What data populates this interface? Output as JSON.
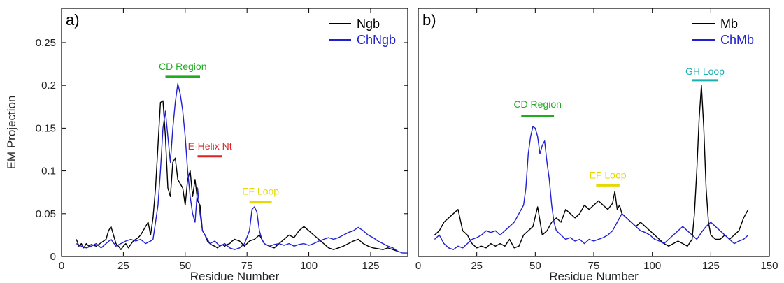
{
  "chart_data": [
    {
      "type": "line",
      "panel_label": "a)",
      "xlabel": "Residue Number",
      "ylabel": "EM Projection",
      "xlim": [
        0,
        140
      ],
      "ylim": [
        0,
        0.29
      ],
      "xticks": [
        0,
        25,
        50,
        75,
        100,
        125
      ],
      "xtick_labels": [
        "0",
        "25",
        "50",
        "75",
        "100",
        "125"
      ],
      "yticks": [
        0,
        0.05,
        0.1,
        0.15,
        0.2,
        0.25
      ],
      "ytick_labels": [
        "0",
        "0.05",
        "0.1",
        "0.15",
        "0.2",
        "0.25"
      ],
      "legend_position": "top-right",
      "series": [
        {
          "name": "Ngb",
          "color": "#000000",
          "x": [
            6,
            7,
            8,
            9,
            10,
            11,
            12,
            13,
            14,
            15,
            16,
            17,
            18,
            19,
            20,
            21,
            22,
            23,
            24,
            25,
            26,
            27,
            28,
            29,
            30,
            31,
            32,
            33,
            34,
            35,
            36,
            37,
            38,
            39,
            40,
            41,
            42,
            43,
            44,
            45,
            46,
            47,
            48,
            49,
            50,
            51,
            52,
            53,
            54,
            55,
            56,
            57,
            58,
            59,
            60,
            61,
            62,
            63,
            64,
            65,
            66,
            67,
            68,
            69,
            70,
            72,
            74,
            76,
            78,
            80,
            82,
            84,
            86,
            88,
            90,
            92,
            94,
            96,
            98,
            100,
            102,
            104,
            106,
            108,
            110,
            112,
            114,
            116,
            118,
            120,
            122,
            124,
            126,
            128,
            130,
            132,
            134,
            136
          ],
          "y": [
            0.02,
            0.012,
            0.015,
            0.01,
            0.015,
            0.012,
            0.014,
            0.013,
            0.012,
            0.014,
            0.016,
            0.018,
            0.02,
            0.03,
            0.035,
            0.025,
            0.015,
            0.012,
            0.008,
            0.012,
            0.015,
            0.01,
            0.014,
            0.018,
            0.02,
            0.022,
            0.025,
            0.03,
            0.035,
            0.04,
            0.025,
            0.045,
            0.08,
            0.13,
            0.18,
            0.182,
            0.14,
            0.08,
            0.07,
            0.11,
            0.115,
            0.09,
            0.085,
            0.08,
            0.06,
            0.09,
            0.1,
            0.07,
            0.09,
            0.065,
            0.06,
            0.03,
            0.025,
            0.018,
            0.015,
            0.013,
            0.012,
            0.01,
            0.012,
            0.014,
            0.012,
            0.014,
            0.015,
            0.018,
            0.02,
            0.018,
            0.012,
            0.018,
            0.02,
            0.025,
            0.015,
            0.012,
            0.01,
            0.015,
            0.02,
            0.025,
            0.022,
            0.03,
            0.035,
            0.03,
            0.025,
            0.02,
            0.015,
            0.01,
            0.008,
            0.01,
            0.012,
            0.015,
            0.018,
            0.02,
            0.015,
            0.012,
            0.01,
            0.009,
            0.008,
            0.01,
            0.008,
            0.006
          ]
        },
        {
          "name": "ChNgb",
          "color": "#2020d0",
          "x": [
            6,
            8,
            10,
            12,
            14,
            16,
            18,
            20,
            22,
            24,
            26,
            28,
            30,
            32,
            34,
            36,
            37,
            38,
            39,
            40,
            41,
            42,
            43,
            44,
            45,
            46,
            47,
            48,
            49,
            50,
            51,
            52,
            53,
            54,
            55,
            56,
            57,
            58,
            59,
            60,
            62,
            64,
            66,
            68,
            70,
            72,
            74,
            76,
            77,
            78,
            79,
            80,
            81,
            82,
            84,
            86,
            88,
            90,
            92,
            94,
            96,
            98,
            100,
            102,
            104,
            106,
            108,
            110,
            112,
            114,
            116,
            118,
            120,
            122,
            124,
            126,
            128,
            130,
            132,
            134,
            136,
            138,
            140
          ],
          "y": [
            0.015,
            0.012,
            0.01,
            0.012,
            0.015,
            0.01,
            0.015,
            0.02,
            0.012,
            0.015,
            0.018,
            0.02,
            0.018,
            0.02,
            0.015,
            0.018,
            0.02,
            0.04,
            0.06,
            0.1,
            0.15,
            0.17,
            0.14,
            0.11,
            0.15,
            0.18,
            0.202,
            0.19,
            0.17,
            0.14,
            0.1,
            0.07,
            0.05,
            0.04,
            0.08,
            0.05,
            0.03,
            0.025,
            0.02,
            0.015,
            0.018,
            0.012,
            0.015,
            0.01,
            0.008,
            0.01,
            0.015,
            0.03,
            0.055,
            0.058,
            0.052,
            0.03,
            0.02,
            0.015,
            0.012,
            0.014,
            0.015,
            0.013,
            0.015,
            0.012,
            0.014,
            0.015,
            0.013,
            0.015,
            0.018,
            0.02,
            0.022,
            0.02,
            0.022,
            0.025,
            0.028,
            0.03,
            0.034,
            0.03,
            0.025,
            0.022,
            0.018,
            0.015,
            0.012,
            0.01,
            0.006,
            0.004,
            0.004
          ]
        }
      ],
      "annotations": [
        {
          "text": "CD Region",
          "x_start": 42,
          "x_end": 56,
          "y": 0.21,
          "color": "#22aa22"
        },
        {
          "text": "E-Helix Nt",
          "x_start": 55,
          "x_end": 65,
          "y": 0.117,
          "color": "#dd2222"
        },
        {
          "text": "EF Loop",
          "x_start": 76,
          "x_end": 85,
          "y": 0.064,
          "color": "#e6d800"
        }
      ]
    },
    {
      "type": "line",
      "panel_label": "b)",
      "xlabel": "Residue Number",
      "ylabel": "",
      "xlim": [
        0,
        150
      ],
      "ylim": [
        0,
        0.29
      ],
      "xticks": [
        0,
        25,
        50,
        75,
        100,
        125,
        150
      ],
      "xtick_labels": [
        "0",
        "25",
        "50",
        "75",
        "100",
        "125",
        "150"
      ],
      "legend_position": "top-right",
      "series": [
        {
          "name": "Mb",
          "color": "#000000",
          "x": [
            7,
            9,
            11,
            13,
            15,
            17,
            19,
            21,
            23,
            25,
            27,
            29,
            31,
            33,
            35,
            37,
            39,
            41,
            43,
            45,
            47,
            49,
            51,
            53,
            55,
            57,
            59,
            61,
            63,
            65,
            67,
            69,
            71,
            73,
            75,
            77,
            79,
            81,
            83,
            84,
            85,
            86,
            87,
            89,
            91,
            93,
            95,
            97,
            99,
            101,
            103,
            105,
            107,
            109,
            111,
            113,
            115,
            117,
            118,
            119,
            120,
            121,
            122,
            123,
            124,
            125,
            127,
            129,
            131,
            133,
            135,
            137,
            139,
            141
          ],
          "y": [
            0.025,
            0.03,
            0.04,
            0.045,
            0.05,
            0.055,
            0.03,
            0.025,
            0.015,
            0.01,
            0.012,
            0.01,
            0.015,
            0.012,
            0.015,
            0.012,
            0.02,
            0.01,
            0.012,
            0.025,
            0.03,
            0.035,
            0.058,
            0.025,
            0.03,
            0.04,
            0.045,
            0.04,
            0.055,
            0.05,
            0.045,
            0.05,
            0.06,
            0.055,
            0.06,
            0.065,
            0.06,
            0.055,
            0.062,
            0.076,
            0.055,
            0.06,
            0.05,
            0.045,
            0.04,
            0.035,
            0.04,
            0.035,
            0.03,
            0.025,
            0.02,
            0.015,
            0.012,
            0.015,
            0.018,
            0.015,
            0.012,
            0.02,
            0.05,
            0.1,
            0.16,
            0.2,
            0.15,
            0.08,
            0.04,
            0.025,
            0.02,
            0.02,
            0.025,
            0.02,
            0.025,
            0.03,
            0.045,
            0.055
          ]
        },
        {
          "name": "ChMb",
          "color": "#2020d0",
          "x": [
            7,
            9,
            11,
            13,
            15,
            17,
            19,
            21,
            23,
            25,
            27,
            29,
            31,
            33,
            35,
            37,
            39,
            41,
            43,
            45,
            46,
            47,
            48,
            49,
            50,
            51,
            52,
            53,
            54,
            55,
            56,
            57,
            58,
            59,
            61,
            63,
            65,
            67,
            69,
            71,
            73,
            75,
            77,
            79,
            81,
            83,
            85,
            87,
            89,
            91,
            93,
            95,
            97,
            99,
            101,
            103,
            105,
            107,
            109,
            111,
            113,
            115,
            117,
            119,
            121,
            123,
            125,
            127,
            129,
            131,
            133,
            135,
            137,
            139,
            141
          ],
          "y": [
            0.02,
            0.025,
            0.015,
            0.01,
            0.008,
            0.012,
            0.01,
            0.015,
            0.02,
            0.022,
            0.025,
            0.03,
            0.028,
            0.03,
            0.025,
            0.03,
            0.035,
            0.04,
            0.05,
            0.06,
            0.08,
            0.12,
            0.14,
            0.152,
            0.15,
            0.14,
            0.12,
            0.13,
            0.135,
            0.11,
            0.09,
            0.06,
            0.04,
            0.03,
            0.025,
            0.02,
            0.022,
            0.018,
            0.02,
            0.015,
            0.02,
            0.018,
            0.02,
            0.022,
            0.025,
            0.03,
            0.04,
            0.05,
            0.045,
            0.04,
            0.035,
            0.03,
            0.028,
            0.025,
            0.02,
            0.018,
            0.015,
            0.02,
            0.025,
            0.03,
            0.035,
            0.03,
            0.025,
            0.02,
            0.028,
            0.035,
            0.04,
            0.035,
            0.03,
            0.025,
            0.02,
            0.015,
            0.018,
            0.02,
            0.025
          ]
        }
      ],
      "annotations": [
        {
          "text": "CD Region",
          "x_start": 44,
          "x_end": 58,
          "y": 0.164,
          "color": "#22aa22"
        },
        {
          "text": "EF Loop",
          "x_start": 76,
          "x_end": 86,
          "y": 0.083,
          "color": "#e6d800"
        },
        {
          "text": "GH Loop",
          "x_start": 117,
          "x_end": 128,
          "y": 0.206,
          "color": "#1ab0b0"
        }
      ]
    }
  ]
}
